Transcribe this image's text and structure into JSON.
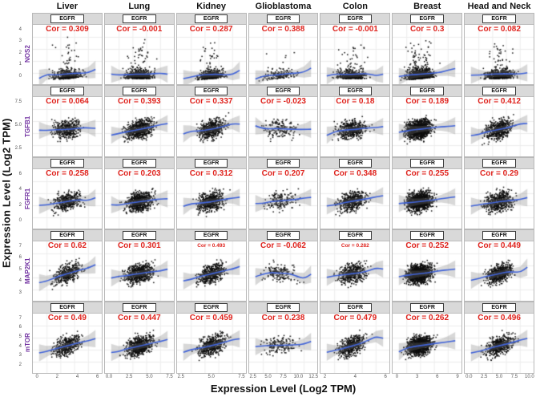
{
  "figure": {
    "x_axis_title": "Expression Level (Log2 TPM)",
    "y_axis_title": "Expression Level (Log2 TPM)",
    "strip_label": "EGFR",
    "cor_prefix": "Cor = "
  },
  "colors": {
    "cor_text": "#df231d",
    "gene_label": "#7030a0",
    "trend_line": "#4063d8",
    "confidence_band": "rgba(125,125,125,0.30)",
    "strip_bg": "#d9d9d9",
    "panel_border": "#b8b8b8",
    "grid_line": "#ededed",
    "point": "#0e0e0e",
    "column_title": "#111111"
  },
  "chart_data": {
    "type": "scatter",
    "facet_gene_x": "EGFR",
    "xlabel": "Expression Level (Log2 TPM)",
    "ylabel": "Expression Level (Log2 TPM)",
    "columns": [
      {
        "label": "Liver",
        "x_ticks": [
          "0",
          "2",
          "4",
          "6"
        ],
        "n": 420,
        "x_center": 0.5,
        "x_spread": 0.16
      },
      {
        "label": "Lung",
        "x_ticks": [
          "0.0",
          "2.5",
          "5.0",
          "7.5"
        ],
        "n": 640,
        "x_center": 0.5,
        "x_spread": 0.16
      },
      {
        "label": "Kidney",
        "x_ticks": [
          "2.5",
          "5.0",
          "7.5"
        ],
        "n": 520,
        "x_center": 0.5,
        "x_spread": 0.15
      },
      {
        "label": "Glioblastoma",
        "x_ticks": [
          "2.5",
          "5.0",
          "7.5",
          "10.0",
          "12.5"
        ],
        "n": 160,
        "x_center": 0.45,
        "x_spread": 0.2
      },
      {
        "label": "Colon",
        "x_ticks": [
          "2",
          "4",
          "6"
        ],
        "n": 470,
        "x_center": 0.45,
        "x_spread": 0.16
      },
      {
        "label": "Breast",
        "x_ticks": [
          "0",
          "3",
          "6",
          "9"
        ],
        "n": 1050,
        "x_center": 0.38,
        "x_spread": 0.15
      },
      {
        "label": "Head and Neck",
        "x_ticks": [
          "0.0",
          "2.5",
          "5.0",
          "7.5",
          "10.0"
        ],
        "n": 540,
        "x_center": 0.5,
        "x_spread": 0.16
      }
    ],
    "rows": [
      {
        "gene": "NOS2",
        "y_ticks": [
          "4",
          "3",
          "2",
          "1",
          "0"
        ],
        "profile": "bottom",
        "cors": [
          0.309,
          -0.001,
          0.287,
          0.388,
          -0.001,
          0.3,
          0.082
        ]
      },
      {
        "gene": "TGFB1",
        "y_ticks": [
          "7.5",
          "5.0",
          "2.5"
        ],
        "profile": "mid",
        "cors": [
          0.064,
          0.393,
          0.337,
          -0.023,
          0.18,
          0.189,
          0.412
        ]
      },
      {
        "gene": "FGFR1",
        "y_ticks": [
          "6",
          "4",
          "2",
          "0"
        ],
        "profile": "mid",
        "cors": [
          0.258,
          0.203,
          0.312,
          0.207,
          0.348,
          0.255,
          0.29
        ]
      },
      {
        "gene": "MAP2K1",
        "y_ticks": [
          "7",
          "6",
          "5",
          "4",
          "3"
        ],
        "profile": "mid",
        "cors": [
          0.62,
          0.301,
          0.493,
          -0.062,
          0.282,
          0.252,
          0.449
        ]
      },
      {
        "gene": "mTOR",
        "y_ticks": [
          "7",
          "6",
          "5",
          "4",
          "3",
          "2"
        ],
        "profile": "mid",
        "cors": [
          0.49,
          0.447,
          0.459,
          0.238,
          0.479,
          0.262,
          0.496
        ]
      }
    ],
    "small_cor_labels": [
      [
        3,
        2
      ],
      [
        3,
        4
      ]
    ]
  }
}
